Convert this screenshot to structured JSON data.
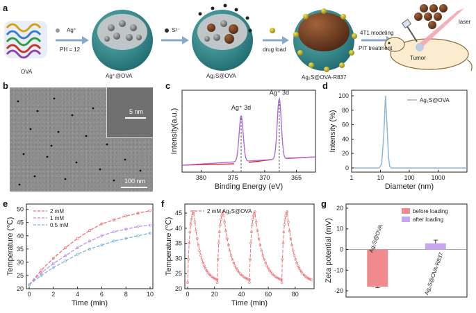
{
  "panels": {
    "a": "a",
    "b": "b",
    "c": "c",
    "d": "d",
    "e": "e",
    "f": "f",
    "g": "g"
  },
  "schematic": {
    "ova_label": "OVA",
    "ag_ion": "Ag⁺",
    "ph_label": "PH = 12",
    "ag_ova_label": "Ag⁺@OVA",
    "sulfide_ion": "S²⁻",
    "ag2s_ova_label": "Ag₂S@OVA",
    "drug_load_label": "drug load",
    "ag2s_ova_r837_label": "Ag₂S@OVA-R837",
    "modeling_label": "4T1 modeling",
    "treatment_label": "PIT treatment",
    "tumor_label": "Tumor",
    "laser_label": "laser"
  },
  "tem": {
    "inset_scale": "5 nm",
    "scale_bar": "100 nm"
  },
  "chart_data": [
    {
      "panel": "c",
      "type": "line",
      "xlabel": "Binding Energy (eV)",
      "ylabel": "Intensity(a.u.)",
      "xlim": [
        383,
        362
      ],
      "x_ticks": [
        380,
        375,
        370,
        365
      ],
      "peaks": [
        {
          "label": "Ag⁺ 3d",
          "x": 373.7,
          "height": 0.72
        },
        {
          "label": "Ag⁺ 3d",
          "x": 367.7,
          "height": 0.95
        }
      ],
      "peak_positions": [
        373.7,
        367.7
      ]
    },
    {
      "panel": "d",
      "type": "line",
      "xlabel": "Diameter (nm)",
      "ylabel": "Intensity (%)",
      "xscale": "log",
      "xlim": [
        1,
        10000
      ],
      "ylim": [
        0,
        100
      ],
      "x_ticks": [
        "1",
        "10",
        "100",
        "1000"
      ],
      "y_ticks": [
        0,
        20,
        40,
        60,
        80,
        100
      ],
      "series": [
        {
          "name": "Ag₂S@OVA",
          "color": "#8fb6d8",
          "x": [
            9,
            11,
            13,
            15,
            17,
            19,
            21,
            24
          ],
          "y": [
            0,
            5,
            45,
            100,
            55,
            15,
            2,
            0
          ]
        }
      ]
    },
    {
      "panel": "e",
      "type": "line",
      "xlabel": "Time (min)",
      "ylabel": "Temperature (℃)",
      "xlim": [
        0,
        10
      ],
      "ylim": [
        20,
        52
      ],
      "x_ticks": [
        0,
        2,
        4,
        6,
        8,
        10
      ],
      "y_ticks": [
        20,
        25,
        30,
        35,
        40,
        45,
        50
      ],
      "series": [
        {
          "name": "2 mM",
          "color": "#e8747c",
          "x": [
            0,
            1,
            2,
            3,
            4,
            5,
            6,
            7,
            8,
            9,
            10
          ],
          "y": [
            21.5,
            27,
            31.5,
            35.5,
            39,
            42,
            44.5,
            46,
            47.5,
            48.5,
            49.5
          ]
        },
        {
          "name": "1 mM",
          "color": "#c08ee8",
          "x": [
            0,
            1,
            2,
            3,
            4,
            5,
            6,
            7,
            8,
            9,
            10
          ],
          "y": [
            21.5,
            26,
            29.5,
            32.5,
            35.5,
            38,
            40,
            41.5,
            42.5,
            43.5,
            44
          ]
        },
        {
          "name": "0.5 mM",
          "color": "#7fb5d9",
          "x": [
            0,
            1,
            2,
            3,
            4,
            5,
            6,
            7,
            8,
            9,
            10
          ],
          "y": [
            21.5,
            25,
            28,
            30.5,
            33,
            35,
            36.5,
            38,
            39,
            40,
            41
          ]
        }
      ]
    },
    {
      "panel": "f",
      "type": "line",
      "xlabel": "Time (min)",
      "ylabel": "Temperature (℃)",
      "xlim": [
        0,
        92
      ],
      "ylim": [
        20,
        48
      ],
      "x_ticks": [
        0,
        20,
        40,
        60,
        80
      ],
      "y_ticks": [
        20,
        25,
        30,
        35,
        40,
        45
      ],
      "series": [
        {
          "name": "2 mM Ag₂S@OVA",
          "color": "#e8747c",
          "cycles": [
            {
              "start": 0,
              "peak": 4.5,
              "end": 22
            },
            {
              "start": 22,
              "peak": 26.5,
              "end": 46
            },
            {
              "start": 46,
              "peak": 50,
              "end": 70
            },
            {
              "start": 70,
              "peak": 74,
              "end": 92
            }
          ],
          "baseline": 22,
          "max": 45.5
        }
      ]
    },
    {
      "panel": "g",
      "type": "bar",
      "ylabel": "Zeta potential (mV)",
      "ylim": [
        -23,
        22
      ],
      "y_ticks": [
        -20,
        -10,
        0,
        10,
        20
      ],
      "categories": [
        "Ag₂S@OVA",
        "Ag₂S@OVA-R837"
      ],
      "series": [
        {
          "name": "before loading",
          "color": "#f08a8e",
          "values": [
            -18,
            null
          ],
          "err": [
            0.5,
            null
          ]
        },
        {
          "name": "after loading",
          "color": "#c7a6ee",
          "values": [
            null,
            3
          ],
          "err": [
            null,
            1.5
          ]
        }
      ]
    }
  ]
}
